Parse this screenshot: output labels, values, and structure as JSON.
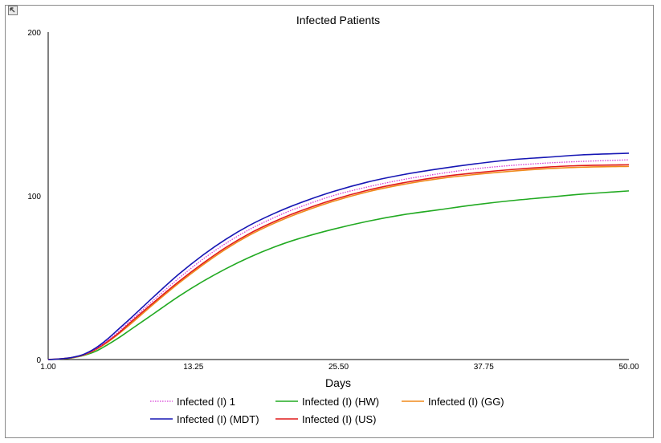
{
  "chart_data": {
    "type": "line",
    "title": "Infected Patients",
    "xlabel": "Days",
    "ylabel": "",
    "xlim": [
      1.0,
      50.0
    ],
    "ylim": [
      0,
      200
    ],
    "x_ticks": [
      "1.00",
      "13.25",
      "25.50",
      "37.75",
      "50.00"
    ],
    "y_ticks": [
      "0",
      "100",
      "200"
    ],
    "grid": false,
    "legend_position": "bottom",
    "x": [
      1,
      2,
      3,
      4,
      5,
      6,
      7,
      8,
      10,
      12,
      14,
      16,
      18,
      20,
      22,
      25,
      28,
      31,
      34,
      37,
      40,
      43,
      46,
      50
    ],
    "series": [
      {
        "name": "Infected (I) 1",
        "color": "#d63ad6",
        "style": "dotted",
        "values": [
          0,
          0.4,
          1.2,
          3,
          6.5,
          11.5,
          17.5,
          24,
          37,
          49.5,
          61,
          71,
          79.5,
          86.5,
          92.5,
          100,
          105.5,
          110,
          113.5,
          116.5,
          118.5,
          120,
          121,
          122
        ]
      },
      {
        "name": "Infected (I) (HW)",
        "color": "#22aa22",
        "style": "solid",
        "values": [
          0,
          0.3,
          1,
          2.5,
          5,
          9,
          13.5,
          18.5,
          28.5,
          38.5,
          47.5,
          55.5,
          62.5,
          68.5,
          73.5,
          79.5,
          84.5,
          88.5,
          91.5,
          94.5,
          97,
          99,
          101,
          103
        ]
      },
      {
        "name": "Infected (I) (GG)",
        "color": "#f08a1c",
        "style": "solid",
        "values": [
          0,
          0.4,
          1.1,
          2.8,
          6,
          10.5,
          16,
          22,
          34.5,
          46.5,
          57.5,
          67.5,
          76,
          83,
          89,
          96.5,
          102.5,
          107,
          110.5,
          113,
          115,
          116.5,
          117.5,
          118
        ]
      },
      {
        "name": "Infected (I) (MDT)",
        "color": "#1616b4",
        "style": "solid",
        "values": [
          0,
          0.4,
          1.3,
          3.2,
          7,
          12.5,
          19,
          25.5,
          39,
          52,
          63.5,
          73.5,
          82,
          89,
          95,
          102.5,
          108.5,
          113,
          116.5,
          119.5,
          122,
          123.5,
          125,
          126
        ]
      },
      {
        "name": "Infected (I) (US)",
        "color": "#e01a1a",
        "style": "solid",
        "values": [
          0,
          0.4,
          1.2,
          2.9,
          6.2,
          11,
          16.5,
          23,
          35.5,
          47.5,
          58.5,
          68.5,
          77,
          84,
          90,
          97.5,
          103.5,
          108,
          111.5,
          114,
          116,
          117.5,
          118.5,
          119
        ]
      }
    ]
  },
  "ui": {
    "corner_button_icon": "expand-icon"
  }
}
